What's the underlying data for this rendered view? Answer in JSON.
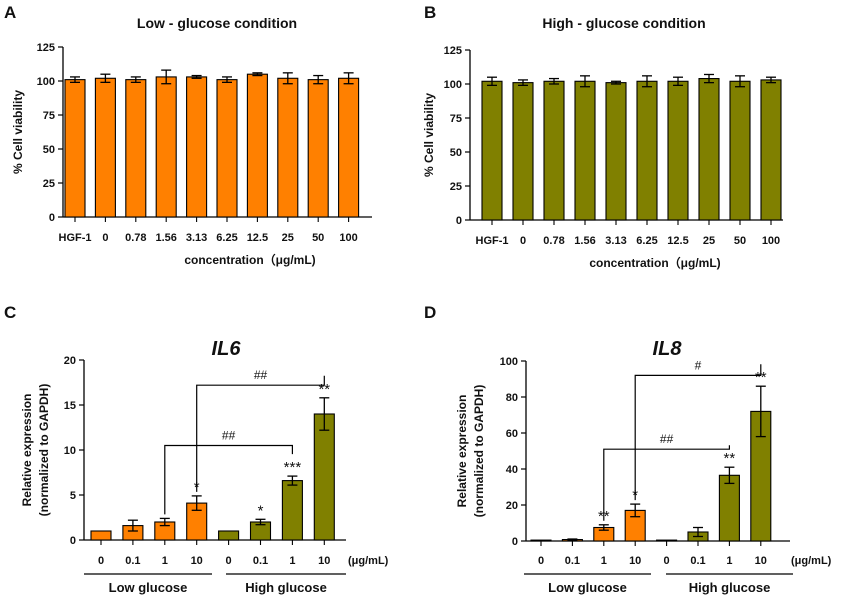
{
  "chart_data": [
    {
      "panel": "A",
      "type": "bar",
      "title": "Low - glucose condition",
      "xlabel": "concentration（μg/mL)",
      "ylabel": "% Cell viability",
      "ylim": [
        0,
        125
      ],
      "yticks": [
        0,
        25,
        50,
        75,
        100,
        125
      ],
      "categories": [
        "HGF-1",
        "0",
        "0.78",
        "1.56",
        "3.13",
        "6.25",
        "12.5",
        "25",
        "50",
        "100"
      ],
      "values": [
        101,
        102,
        101,
        103,
        103,
        101,
        105,
        102,
        101,
        102
      ],
      "errors": [
        2,
        3,
        2,
        5,
        1,
        2,
        1,
        4,
        3,
        4
      ],
      "color": "#ff8000"
    },
    {
      "panel": "B",
      "type": "bar",
      "title": "High - glucose condition",
      "xlabel": "concentration（μg/mL)",
      "ylabel": "% Cell viability",
      "ylim": [
        0,
        125
      ],
      "yticks": [
        0,
        25,
        50,
        75,
        100,
        125
      ],
      "categories": [
        "HGF-1",
        "0",
        "0.78",
        "1.56",
        "3.13",
        "6.25",
        "12.5",
        "25",
        "50",
        "100"
      ],
      "values": [
        102,
        101,
        102,
        102,
        101,
        102,
        102,
        104,
        102,
        103
      ],
      "errors": [
        3,
        2,
        2,
        4,
        1,
        4,
        3,
        3,
        4,
        2
      ],
      "color": "#808000"
    },
    {
      "panel": "C",
      "type": "bar",
      "title": "IL6",
      "ylabel": "Relative expression",
      "ylabel2": "(normalized to GAPDH)",
      "ylim": [
        0,
        20
      ],
      "yticks": [
        0,
        5,
        10,
        15,
        20
      ],
      "unit": "(μg/mL)",
      "categories": [
        "0",
        "0.1",
        "1",
        "10",
        "0",
        "0.1",
        "1",
        "10"
      ],
      "values": [
        1,
        1.6,
        2.0,
        4.1,
        1,
        2.0,
        6.6,
        14.0
      ],
      "errors": [
        0,
        0.6,
        0.4,
        0.8,
        0,
        0.3,
        0.5,
        1.8
      ],
      "significance": [
        "",
        "",
        "",
        "*",
        "",
        "*",
        "***",
        "**"
      ],
      "colors": [
        "#ff8000",
        "#ff8000",
        "#ff8000",
        "#ff8000",
        "#808000",
        "#808000",
        "#808000",
        "#808000"
      ],
      "groups": [
        "Low glucose",
        "High glucose"
      ],
      "brackets": [
        {
          "from": 2,
          "to": 6,
          "y": 10.5,
          "label": "##"
        },
        {
          "from": 3,
          "to": 7,
          "y": 17.2,
          "label": "##"
        }
      ]
    },
    {
      "panel": "D",
      "type": "bar",
      "title": "IL8",
      "ylabel": "Relative expression",
      "ylabel2": "(normalized to GAPDH)",
      "ylim": [
        0,
        100
      ],
      "yticks": [
        0,
        20,
        40,
        60,
        80,
        100
      ],
      "unit": "(μg/mL)",
      "categories": [
        "0",
        "0.1",
        "1",
        "10",
        "0",
        "0.1",
        "1",
        "10"
      ],
      "values": [
        0.5,
        0.8,
        7.5,
        17,
        0.5,
        5,
        36.5,
        72
      ],
      "errors": [
        0,
        0.3,
        1.5,
        3.5,
        0,
        2.5,
        4.5,
        14
      ],
      "significance": [
        "",
        "",
        "**",
        "*",
        "",
        "",
        "**",
        "**"
      ],
      "colors": [
        "#ff8000",
        "#ff8000",
        "#ff8000",
        "#ff8000",
        "#808000",
        "#808000",
        "#808000",
        "#808000"
      ],
      "groups": [
        "Low glucose",
        "High glucose"
      ],
      "brackets": [
        {
          "from": 2,
          "to": 6,
          "y": 51,
          "label": "##"
        },
        {
          "from": 3,
          "to": 7,
          "y": 92,
          "label": "#"
        }
      ]
    }
  ]
}
